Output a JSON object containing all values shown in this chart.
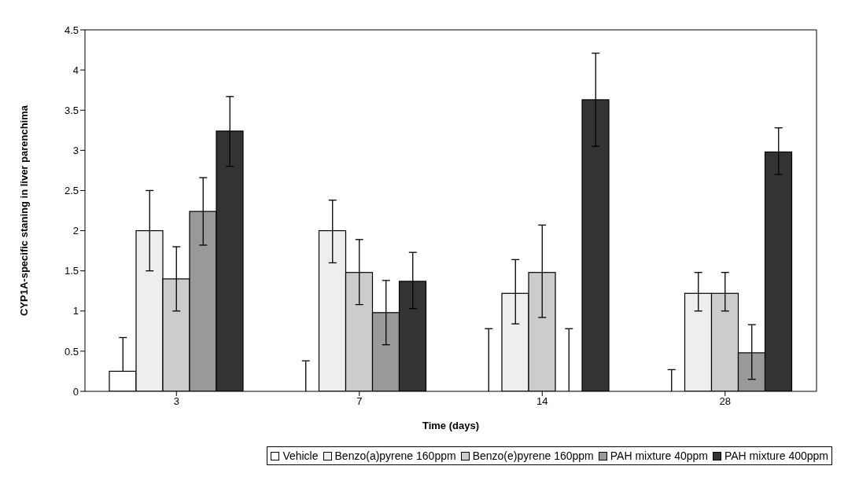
{
  "chart_data": {
    "type": "bar",
    "xlabel": "Time (days)",
    "ylabel": "CYP1A-specific staning in liver parenchima",
    "categories": [
      "3",
      "7",
      "14",
      "28"
    ],
    "series": [
      {
        "name": "Vehicle",
        "color": "#ffffff",
        "values": [
          0.25,
          0,
          0,
          0
        ],
        "errors": [
          [
            0.25,
            0.67
          ],
          [
            0,
            0.38
          ],
          [
            0,
            0.78
          ],
          [
            0,
            0.27
          ]
        ]
      },
      {
        "name": "Benzo(a)pyrene 160ppm",
        "color": "#eeeeee",
        "values": [
          2.0,
          2.0,
          1.22,
          1.22
        ],
        "errors": [
          [
            1.5,
            2.5
          ],
          [
            1.6,
            2.38
          ],
          [
            0.84,
            1.64
          ],
          [
            1.0,
            1.48
          ]
        ]
      },
      {
        "name": "Benzo(e)pyrene 160ppm",
        "color": "#cccccc",
        "values": [
          1.4,
          1.48,
          1.48,
          1.22
        ],
        "errors": [
          [
            1.0,
            1.8
          ],
          [
            1.08,
            1.89
          ],
          [
            0.92,
            2.07
          ],
          [
            1.0,
            1.48
          ]
        ]
      },
      {
        "name": "PAH mixture 40ppm",
        "color": "#999999",
        "values": [
          2.24,
          0.98,
          0,
          0.48
        ],
        "errors": [
          [
            1.82,
            2.66
          ],
          [
            0.58,
            1.38
          ],
          [
            0,
            0.78
          ],
          [
            0.15,
            0.83
          ]
        ]
      },
      {
        "name": "PAH mixture 400ppm",
        "color": "#333333",
        "values": [
          3.24,
          1.37,
          3.63,
          2.98
        ],
        "errors": [
          [
            2.8,
            3.67
          ],
          [
            1.03,
            1.73
          ],
          [
            3.05,
            4.21
          ],
          [
            2.7,
            3.28
          ]
        ]
      }
    ],
    "ylim": [
      0,
      4.5
    ],
    "yticks": [
      0,
      0.5,
      1,
      1.5,
      2,
      2.5,
      3,
      3.5,
      4,
      4.5
    ],
    "grid": false,
    "legend": "bottom"
  }
}
